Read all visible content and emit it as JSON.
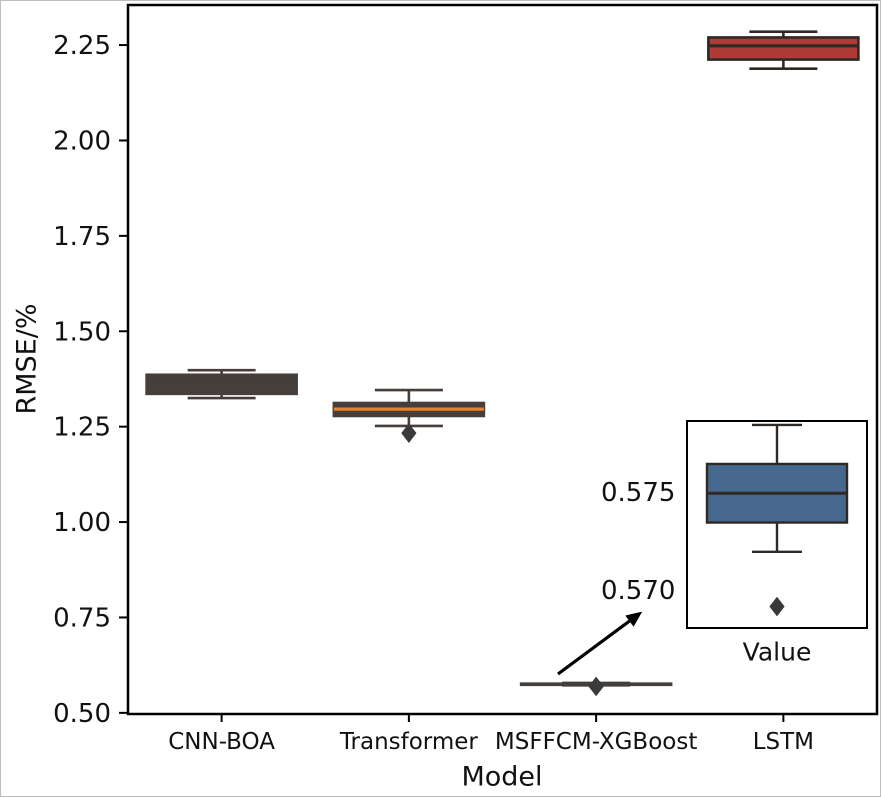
{
  "figure": {
    "background": "#ffffff",
    "frame_color": "#000000"
  },
  "chart_data": {
    "type": "box",
    "title": "",
    "xlabel": "Model",
    "ylabel": "RMSE/%",
    "ylim": [
      0.497,
      2.355
    ],
    "yticks": [
      "0.50",
      "0.75",
      "1.00",
      "1.25",
      "1.50",
      "1.75",
      "2.00",
      "2.25"
    ],
    "categories": [
      "CNN-BOA",
      "Transformer",
      "MSFFCM-XGBoost",
      "LSTM"
    ],
    "grid": false,
    "legend": false,
    "outlier_marker": "diamond",
    "outlier_color": "#3a3a3a",
    "boxes": [
      {
        "category": "CNN-BOA",
        "whisker_low": 1.325,
        "q1": 1.336,
        "median": 1.365,
        "q3": 1.386,
        "whisker_high": 1.398,
        "outliers": [],
        "fill": "#453e3a",
        "edge": "#453e3a",
        "median_color": "#453e3a"
      },
      {
        "category": "Transformer",
        "whisker_low": 1.252,
        "q1": 1.278,
        "median": 1.296,
        "q3": 1.312,
        "whisker_high": 1.346,
        "outliers": [
          1.233
        ],
        "fill": "#453e3a",
        "edge": "#453e3a",
        "median_color": "#e8832d"
      },
      {
        "category": "MSFFCM-XGBoost",
        "whisker_low": 0.572,
        "q1": 0.5735,
        "median": 0.575,
        "q3": 0.5765,
        "whisker_high": 0.5785,
        "outliers": [
          0.5692
        ],
        "fill": "#453e3a",
        "edge": "#453e3a",
        "median_color": "#453e3a"
      },
      {
        "category": "LSTM",
        "whisker_low": 2.188,
        "q1": 2.212,
        "median": 2.248,
        "q3": 2.27,
        "whisker_high": 2.285,
        "outliers": [],
        "fill": "#ae3b38",
        "edge": "#2f2926",
        "median_color": "#2f2926"
      }
    ],
    "inset": {
      "xlabel": "Value",
      "yticks": [
        "0.575",
        "0.570"
      ],
      "ylim": [
        0.5681,
        0.5787
      ],
      "box": {
        "category": "MSFFCM-XGBoost",
        "whisker_low": 0.572,
        "q1": 0.5735,
        "median": 0.575,
        "q3": 0.5765,
        "whisker_high": 0.5785,
        "outliers": [
          0.5692
        ],
        "fill": "#47688e",
        "edge": "#2f2926",
        "median_color": "#2f2926"
      }
    },
    "annotation": {
      "type": "arrow",
      "color": "#000000",
      "description": "arrow from MSFFCM-XGBoost box to zoom inset"
    }
  }
}
